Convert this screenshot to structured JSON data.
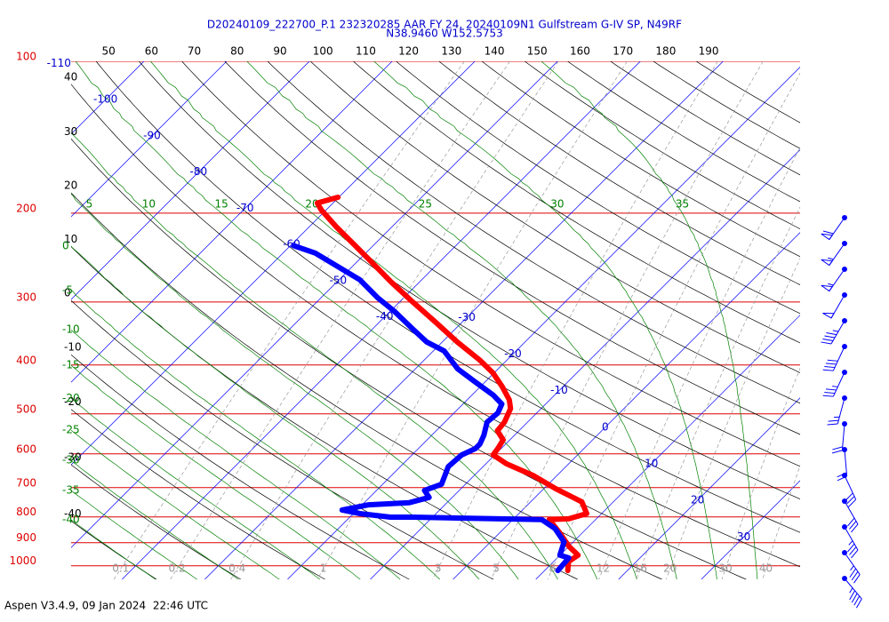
{
  "chart_data": {
    "type": "skewt",
    "title": "D20240109_222700_P.1 232320285 AAR FY 24, 20240109N1 Gulfstream G-IV SP, N49RF",
    "subtitle": "N38.9460 W152.5753",
    "footer": "Aspen V3.4.9, 09 Jan 2024  22:46 UTC",
    "ylim": [
      100,
      1064
    ],
    "log_y": true,
    "xlim": [
      -47.8,
      40.3
    ],
    "skew_degrees": 45,
    "pressure_ticks": [
      100,
      200,
      300,
      400,
      500,
      600,
      700,
      800,
      900,
      1000
    ],
    "isotherms": [
      -110,
      -100,
      -90,
      -80,
      -70,
      -60,
      -50,
      -40,
      -30,
      -20,
      -10,
      0,
      10,
      20,
      30
    ],
    "dry_adiabats_top": [
      50,
      60,
      70,
      80,
      90,
      100,
      110,
      120,
      130,
      140,
      150,
      160,
      170,
      180,
      190
    ],
    "dry_adiabats_left": [
      40,
      30,
      20,
      10,
      0,
      -10,
      -20,
      -30,
      -40
    ],
    "moist_adiabats_top": [
      5,
      10,
      15,
      20,
      25,
      30,
      35
    ],
    "moist_adiabats_left": [
      0,
      -5,
      -10,
      -15,
      -20,
      -25,
      -30,
      -35,
      -40
    ],
    "mixing_ratios": [
      0.1,
      0.2,
      0.4,
      1,
      3,
      5,
      8,
      12,
      16,
      20,
      30,
      40
    ],
    "colors": {
      "isobar": "#dd0000",
      "isotherm": "#0000ff",
      "dry": "#000000",
      "moist": "#008000",
      "mixing": "#999999"
    },
    "series": [
      {
        "color": "#ff0000",
        "pressure": [
          186,
          191,
          197,
          213,
          231,
          251,
          274,
          300,
          329,
          360,
          391,
          415,
          441,
          469,
          488,
          519,
          540,
          563,
          586,
          603,
          628,
          662,
          703,
          747,
          788,
          807,
          810,
          861,
          915,
          953,
          981,
          1022
        ],
        "values": [
          -60.1,
          -61.9,
          -60.6,
          -56.7,
          -52.4,
          -48.0,
          -43.4,
          -38.4,
          -33.2,
          -28.2,
          -23.3,
          -20.1,
          -17.4,
          -14.9,
          -13.7,
          -12.8,
          -12.6,
          -10.8,
          -10.4,
          -10.2,
          -7.5,
          -2.9,
          1.4,
          6.2,
          8.2,
          6.7,
          4.4,
          7.3,
          10.0,
          12.2,
          11.8,
          12.8
        ]
      },
      {
        "color": "#0000ff",
        "pressure": [
          232,
          240,
          255,
          271,
          294,
          313,
          339,
          360,
          375,
          407,
          432,
          459,
          478,
          498,
          519,
          551,
          574,
          586,
          603,
          636,
          689,
          709,
          732,
          750,
          757,
          775,
          788,
          801,
          801,
          810,
          844,
          897,
          953,
          965,
          1022
        ],
        "values": [
          -59.6,
          -56.1,
          -51.8,
          -47.5,
          -43.2,
          -39.5,
          -35.2,
          -31.9,
          -28.7,
          -24.9,
          -21.2,
          -17.4,
          -15.3,
          -14.7,
          -14.9,
          -13.7,
          -13.1,
          -13.1,
          -14.0,
          -14.2,
          -12.9,
          -14.2,
          -12.8,
          -14.6,
          -19.2,
          -21.8,
          -19.2,
          -15.1,
          -12.4,
          3.5,
          6.2,
          8.9,
          10.0,
          11.4,
          11.6
        ]
      }
    ],
    "wind": {
      "color": "#0000ff",
      "speed": [
        60,
        55,
        55,
        50,
        45,
        40,
        35,
        25,
        20,
        20,
        30,
        30,
        35,
        35,
        45
      ],
      "direction": [
        215,
        215,
        215,
        210,
        210,
        205,
        205,
        195,
        185,
        175,
        155,
        150,
        150,
        145,
        140
      ]
    }
  }
}
